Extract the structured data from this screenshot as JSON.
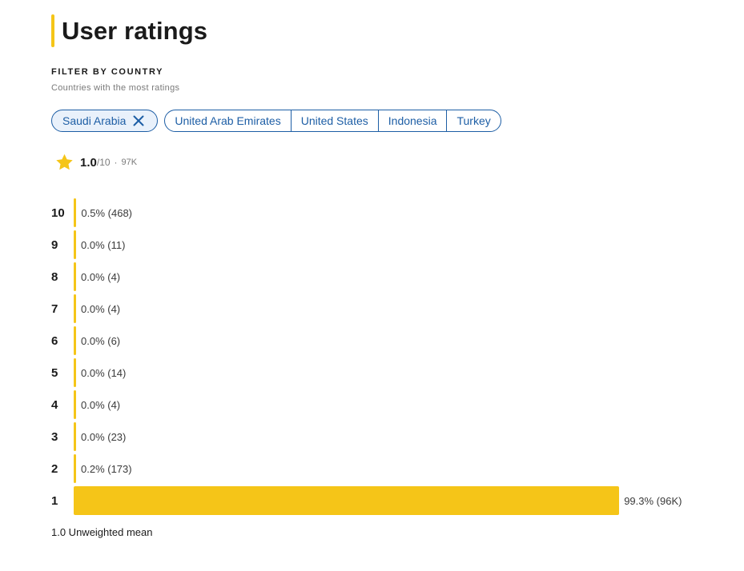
{
  "header": {
    "title": "User ratings"
  },
  "filter": {
    "heading": "FILTER BY COUNTRY",
    "subtitle": "Countries with the most ratings",
    "selected": "Saudi Arabia",
    "options": [
      "United Arab Emirates",
      "United States",
      "Indonesia",
      "Turkey"
    ]
  },
  "summary": {
    "score": "1.0",
    "out_of": "/10",
    "separator": "·",
    "count": "97K",
    "star_icon": "star-icon",
    "star_color": "#f5c518"
  },
  "chart_data": {
    "type": "bar",
    "orientation": "horizontal",
    "categories": [
      "10",
      "9",
      "8",
      "7",
      "6",
      "5",
      "4",
      "3",
      "2",
      "1"
    ],
    "values": [
      0.5,
      0.0,
      0.0,
      0.0,
      0.0,
      0.0,
      0.0,
      0.0,
      0.2,
      99.3
    ],
    "counts": [
      "468",
      "11",
      "4",
      "4",
      "6",
      "14",
      "4",
      "23",
      "173",
      "96K"
    ],
    "labels": [
      "0.5% (468)",
      "0.0% (11)",
      "0.0% (4)",
      "0.0% (4)",
      "0.0% (6)",
      "0.0% (14)",
      "0.0% (4)",
      "0.0% (23)",
      "0.2% (173)",
      "99.3% (96K)"
    ],
    "xlim": [
      0,
      100
    ],
    "bar_color": "#f5c518",
    "grid": false
  },
  "footnote": "1.0 Unweighted mean",
  "colors": {
    "accent": "#f5c518",
    "link": "#1d5ea5",
    "chip_selected_bg": "#e9f1fb"
  }
}
